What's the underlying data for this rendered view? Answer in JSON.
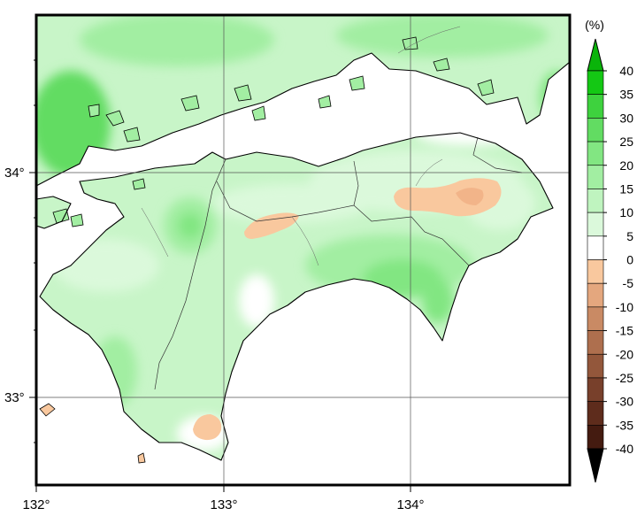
{
  "map": {
    "lon_ticks": [
      "132°",
      "133°",
      "134°"
    ],
    "lat_ticks": [
      "34°",
      "33°"
    ],
    "lon_range": [
      132.0,
      134.85
    ],
    "lat_range": [
      32.6,
      34.8
    ],
    "regions": [
      "Shikoku",
      "Seto Inland Sea",
      "western Honshu coast"
    ],
    "anomaly_zones": [
      {
        "name": "eastern-shikoku-negative",
        "sign": "negative",
        "level": "-5 to 0"
      },
      {
        "name": "central-ridge-negative",
        "sign": "negative",
        "level": "-5 to 0"
      },
      {
        "name": "southwest-tip-negative",
        "sign": "negative",
        "level": "-5 to 0"
      },
      {
        "name": "south-coast-positive",
        "sign": "positive",
        "level": "20 to 30"
      },
      {
        "name": "northwest-honshu-positive",
        "sign": "positive",
        "level": "25 to 35"
      }
    ]
  },
  "colorbar": {
    "unit": "(%)",
    "labels": [
      "40",
      "35",
      "30",
      "25",
      "20",
      "15",
      "10",
      "5",
      "0",
      "-5",
      "-10",
      "-15",
      "-20",
      "-25",
      "-30",
      "-35",
      "-40"
    ],
    "colors": [
      "#14c814",
      "#3ed23e",
      "#62dc62",
      "#82e682",
      "#a2eea2",
      "#bff4bf",
      "#dbf9db",
      "#ffffff",
      "#f9c89e",
      "#e4a77e",
      "#c98a64",
      "#ae6f4e",
      "#93573b",
      "#78402b",
      "#5e2c1c",
      "#441b10"
    ],
    "top_arrow_color": "#0ab40a",
    "bottom_arrow_color": "#000000"
  }
}
